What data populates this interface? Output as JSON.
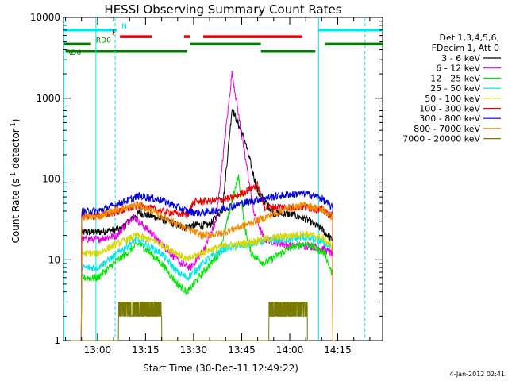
{
  "colors": {
    "black": "#000000",
    "magenta": "#e600e6",
    "green": "#00e600",
    "cyan": "#00e6e6",
    "yellow": "#d6d600",
    "red": "#e60000",
    "blue": "#0000d8",
    "orange": "#f08a00",
    "olive": "#7a7a00",
    "flag_red": "#dd0000",
    "flag_green": "#007a00",
    "flag_cyan": "#00e6e6"
  },
  "chart_data": {
    "type": "line",
    "title": "HESSI Observing Summary Count Rates",
    "xlabel": "Start Time (30-Dec-11 12:49:22)",
    "ylabel": "Count Rate (s⁻¹ detector⁻¹)",
    "ylabel_main": "Count Rate (s",
    "ylabel_sup1": "-1",
    "ylabel_mid": " detector",
    "ylabel_sup2": "-1",
    "ylabel_end": ")",
    "x_unit": "time (HH:MM, 30-Dec-11)",
    "xlim": [
      "12:49:22",
      "14:29:00"
    ],
    "ylim": [
      1,
      10000
    ],
    "yscale": "log",
    "grid": false,
    "legend_placement": "right, outside plot",
    "x_ticks": [
      "13:00",
      "13:15",
      "13:30",
      "13:45",
      "14:00",
      "14:15"
    ],
    "y_ticks": [
      {
        "value": 1,
        "label": "1"
      },
      {
        "value": 10,
        "label": "10"
      },
      {
        "value": 100,
        "label": "100"
      },
      {
        "value": 1000,
        "label": "1000"
      },
      {
        "value": 10000,
        "label": "10000"
      }
    ],
    "legend_header": [
      "Det 1,3,4,5,6,",
      "FDecim 1, Att 0"
    ],
    "series": [
      {
        "name": "3 - 6 keV",
        "color": "#000000",
        "points": [
          [
            "12:50",
            0
          ],
          [
            "13:00",
            22
          ],
          [
            "13:07",
            24
          ],
          [
            "13:13",
            38
          ],
          [
            "13:20",
            32
          ],
          [
            "13:27",
            25
          ],
          [
            "13:30",
            27
          ],
          [
            "13:35",
            27
          ],
          [
            "13:39",
            42
          ],
          [
            "13:42",
            750
          ],
          [
            "13:46",
            300
          ],
          [
            "13:50",
            70
          ],
          [
            "13:55",
            38
          ],
          [
            "14:00",
            37
          ],
          [
            "14:05",
            32
          ],
          [
            "14:10",
            24
          ],
          [
            "14:13",
            18
          ],
          [
            "14:14",
            0
          ]
        ]
      },
      {
        "name": "6 - 12 keV",
        "color": "#e600e6",
        "points": [
          [
            "12:50",
            0
          ],
          [
            "13:00",
            18
          ],
          [
            "13:06",
            20
          ],
          [
            "13:11",
            35
          ],
          [
            "13:17",
            21
          ],
          [
            "13:22",
            13
          ],
          [
            "13:26",
            9
          ],
          [
            "13:29",
            8
          ],
          [
            "13:33",
            13
          ],
          [
            "13:37",
            30
          ],
          [
            "13:42",
            2100
          ],
          [
            "13:45",
            350
          ],
          [
            "13:49",
            36
          ],
          [
            "13:52",
            18
          ],
          [
            "14:00",
            15
          ],
          [
            "14:05",
            15
          ],
          [
            "14:10",
            14
          ],
          [
            "14:13",
            12
          ],
          [
            "14:14",
            0
          ]
        ]
      },
      {
        "name": "12 - 25 keV",
        "color": "#00e600",
        "points": [
          [
            "12:50",
            0
          ],
          [
            "13:00",
            6
          ],
          [
            "13:05",
            9
          ],
          [
            "13:13",
            16
          ],
          [
            "13:20",
            9
          ],
          [
            "13:25",
            5
          ],
          [
            "13:28",
            4
          ],
          [
            "13:30",
            5
          ],
          [
            "13:33",
            7
          ],
          [
            "13:38",
            12
          ],
          [
            "13:44",
            110
          ],
          [
            "13:46",
            25
          ],
          [
            "13:48",
            12
          ],
          [
            "13:52",
            9
          ],
          [
            "14:00",
            14
          ],
          [
            "14:05",
            16
          ],
          [
            "14:08",
            14
          ],
          [
            "14:11",
            12
          ],
          [
            "14:13",
            7
          ],
          [
            "14:14",
            0
          ]
        ]
      },
      {
        "name": "25 - 50 keV",
        "color": "#00e6e6",
        "points": [
          [
            "12:50",
            0
          ],
          [
            "13:00",
            8
          ],
          [
            "13:05",
            11
          ],
          [
            "13:12",
            18
          ],
          [
            "13:20",
            12
          ],
          [
            "13:25",
            7
          ],
          [
            "13:28",
            6
          ],
          [
            "13:30",
            7
          ],
          [
            "13:34",
            10
          ],
          [
            "13:40",
            14
          ],
          [
            "13:46",
            15
          ],
          [
            "13:52",
            17
          ],
          [
            "14:00",
            18
          ],
          [
            "14:05",
            19
          ],
          [
            "14:10",
            17
          ],
          [
            "14:13",
            14
          ],
          [
            "14:14",
            0
          ]
        ]
      },
      {
        "name": "50 - 100 keV",
        "color": "#d6d600",
        "points": [
          [
            "12:50",
            0
          ],
          [
            "13:00",
            12
          ],
          [
            "13:05",
            15
          ],
          [
            "13:12",
            20
          ],
          [
            "13:18",
            17
          ],
          [
            "13:25",
            12
          ],
          [
            "13:28",
            10
          ],
          [
            "13:30",
            11
          ],
          [
            "13:34",
            13
          ],
          [
            "13:40",
            15
          ],
          [
            "13:46",
            16
          ],
          [
            "13:52",
            18
          ],
          [
            "14:00",
            20
          ],
          [
            "14:05",
            21
          ],
          [
            "14:10",
            19
          ],
          [
            "14:13",
            15
          ],
          [
            "14:14",
            0
          ]
        ]
      },
      {
        "name": "100 - 300 keV",
        "color": "#e60000",
        "points": [
          [
            "12:50",
            0
          ],
          [
            "13:00",
            35
          ],
          [
            "13:07",
            40
          ],
          [
            "13:13",
            47
          ],
          [
            "13:20",
            40
          ],
          [
            "13:28",
            36
          ],
          [
            "13:30",
            52
          ],
          [
            "13:36",
            54
          ],
          [
            "13:42",
            58
          ],
          [
            "13:46",
            70
          ],
          [
            "13:50",
            85
          ],
          [
            "13:52",
            45
          ],
          [
            "14:00",
            45
          ],
          [
            "14:05",
            45
          ],
          [
            "14:10",
            42
          ],
          [
            "14:13",
            35
          ],
          [
            "14:14",
            0
          ]
        ]
      },
      {
        "name": "300 - 800 keV",
        "color": "#0000d8",
        "points": [
          [
            "12:50",
            0
          ],
          [
            "13:00",
            40
          ],
          [
            "13:07",
            50
          ],
          [
            "13:13",
            62
          ],
          [
            "13:20",
            55
          ],
          [
            "13:28",
            40
          ],
          [
            "13:32",
            38
          ],
          [
            "13:38",
            42
          ],
          [
            "13:45",
            50
          ],
          [
            "13:52",
            58
          ],
          [
            "14:00",
            65
          ],
          [
            "14:05",
            66
          ],
          [
            "14:10",
            58
          ],
          [
            "14:13",
            45
          ],
          [
            "14:14",
            0
          ]
        ]
      },
      {
        "name": "800 - 7000 keV",
        "color": "#f08a00",
        "points": [
          [
            "12:50",
            0
          ],
          [
            "13:00",
            34
          ],
          [
            "13:06",
            42
          ],
          [
            "13:13",
            48
          ],
          [
            "13:20",
            35
          ],
          [
            "13:28",
            24
          ],
          [
            "13:33",
            20
          ],
          [
            "13:38",
            21
          ],
          [
            "13:45",
            26
          ],
          [
            "13:52",
            33
          ],
          [
            "14:00",
            44
          ],
          [
            "14:05",
            48
          ],
          [
            "14:10",
            42
          ],
          [
            "14:13",
            35
          ],
          [
            "14:14",
            0
          ]
        ]
      },
      {
        "name": "7000 - 20000 keV",
        "color": "#7a7a00",
        "points": [
          [
            "12:50",
            0
          ],
          [
            "13:06",
            0
          ],
          [
            "13:07",
            2
          ],
          [
            "13:09",
            3
          ],
          [
            "13:12",
            2
          ],
          [
            "13:16",
            3
          ],
          [
            "13:19",
            2
          ],
          [
            "13:21",
            0
          ],
          [
            "13:53",
            0
          ],
          [
            "13:54",
            2
          ],
          [
            "13:57",
            3
          ],
          [
            "14:02",
            3
          ],
          [
            "14:05",
            2
          ],
          [
            "14:06",
            0
          ]
        ]
      }
    ],
    "flags": [
      {
        "label": "N",
        "color": "#00e6e6",
        "level": 7000,
        "segments": [
          [
            "12:49:30",
            "13:06"
          ],
          [
            "14:09",
            "14:29"
          ]
        ]
      },
      {
        "label": "F",
        "color": "#dd0000",
        "level": 5800,
        "segments": [
          [
            "13:07",
            "13:17"
          ],
          [
            "13:27",
            "13:29"
          ],
          [
            "13:33",
            "14:04"
          ]
        ]
      },
      {
        "label": "RD0",
        "color": "#007a00",
        "level": 4700,
        "segments": [
          [
            "12:49:30",
            "12:58"
          ],
          [
            "13:29",
            "13:51"
          ],
          [
            "14:11",
            "14:29"
          ]
        ]
      },
      {
        "label": "RD6",
        "color": "#007a00",
        "level": 3800,
        "segments": [
          [
            "12:50",
            "13:05"
          ],
          [
            "13:05",
            "13:28"
          ],
          [
            "13:51",
            "14:08"
          ]
        ]
      }
    ],
    "vertical_markers": [
      {
        "time": "12:49:30",
        "style": "solid"
      },
      {
        "time": "12:59:30",
        "style": "solid"
      },
      {
        "time": "13:05:30",
        "style": "dashed"
      },
      {
        "time": "14:09:00",
        "style": "solid"
      },
      {
        "time": "14:23:30",
        "style": "dashed"
      }
    ]
  },
  "footer": {
    "date_stamp": "4-Jan-2012 02:41"
  }
}
